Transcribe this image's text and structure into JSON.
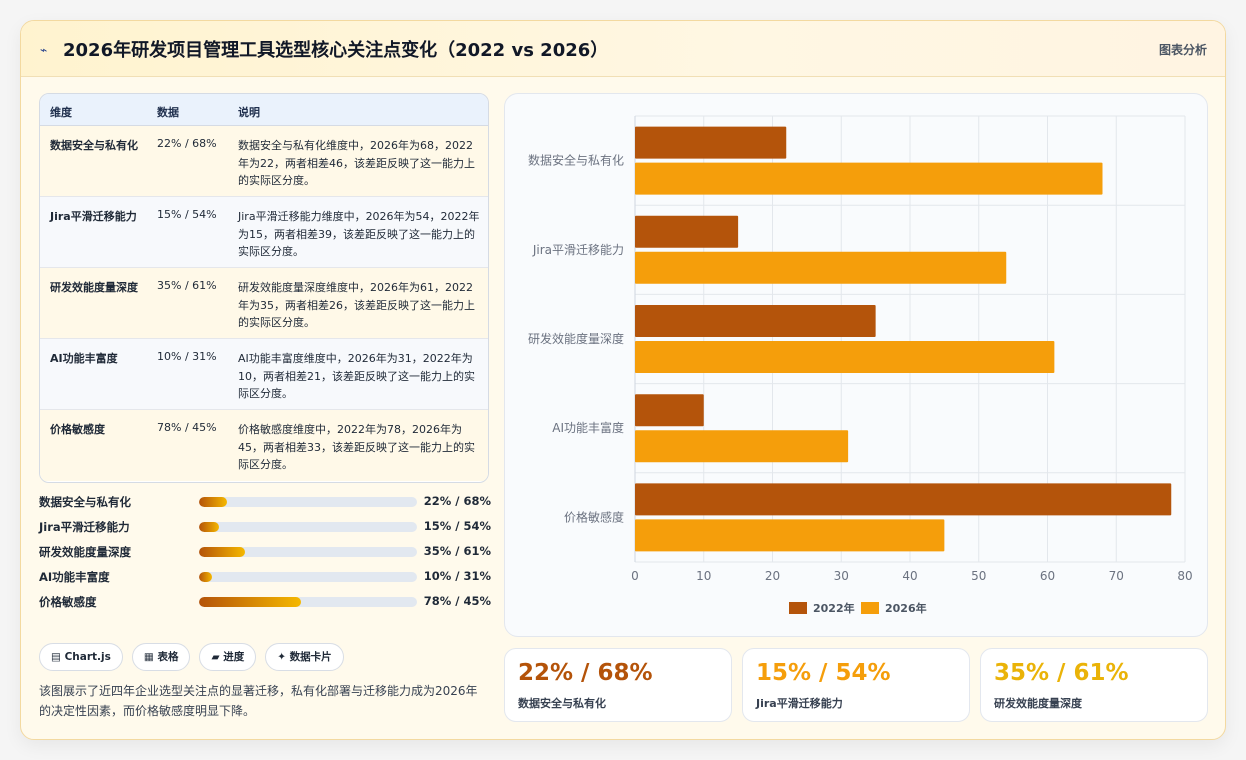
{
  "header": {
    "icon": "chart-line-icon",
    "title": "2026年研发项目管理工具选型核心关注点变化（2022 vs 2026）",
    "tag": "图表分析"
  },
  "table": {
    "headers": [
      "维度",
      "数据",
      "说明"
    ],
    "rows": [
      {
        "dim": "数据安全与私有化",
        "data": "22% / 68%",
        "desc": "数据安全与私有化维度中，2026年为68，2022年为22，两者相差46，该差距反映了这一能力上的实际区分度。"
      },
      {
        "dim": "Jira平滑迁移能力",
        "data": "15% / 54%",
        "desc": "Jira平滑迁移能力维度中，2026年为54，2022年为15，两者相差39，该差距反映了这一能力上的实际区分度。"
      },
      {
        "dim": "研发效能度量深度",
        "data": "35% / 61%",
        "desc": "研发效能度量深度维度中，2026年为61，2022年为35，两者相差26，该差距反映了这一能力上的实际区分度。"
      },
      {
        "dim": "AI功能丰富度",
        "data": "10% / 31%",
        "desc": "AI功能丰富度维度中，2026年为31，2022年为10，两者相差21，该差距反映了这一能力上的实际区分度。"
      },
      {
        "dim": "价格敏感度",
        "data": "78% / 45%",
        "desc": "价格敏感度维度中，2022年为78，2026年为45，两者相差33，该差距反映了这一能力上的实际区分度。"
      }
    ]
  },
  "progress": [
    {
      "label": "数据安全与私有化",
      "value": "22% / 68%",
      "fill": 0.13
    },
    {
      "label": "Jira平滑迁移能力",
      "value": "15% / 54%",
      "fill": 0.09
    },
    {
      "label": "研发效能度量深度",
      "value": "35% / 61%",
      "fill": 0.21
    },
    {
      "label": "AI功能丰富度",
      "value": "10% / 31%",
      "fill": 0.06
    },
    {
      "label": "价格敏感度",
      "value": "78% / 45%",
      "fill": 0.47
    }
  ],
  "chips": [
    {
      "icon": "chart-icon",
      "label": "▤ Chart.js"
    },
    {
      "icon": "table-icon",
      "label": "▦ 表格"
    },
    {
      "icon": "progress-icon",
      "label": "▰ 进度"
    },
    {
      "icon": "sparkle-icon",
      "label": "✦ 数据卡片"
    }
  ],
  "description": "该图展示了近四年企业选型关注点的显著迁移，私有化部署与迁移能力成为2026年的决定性因素，而价格敏感度明显下降。",
  "stats": [
    {
      "value": "22% / 68%",
      "label": "数据安全与私有化",
      "color": "#b45309"
    },
    {
      "value": "15% / 54%",
      "label": "Jira平滑迁移能力",
      "color": "#f59e0b"
    },
    {
      "value": "35% / 61%",
      "label": "研发效能度量深度",
      "color": "#eab308"
    }
  ],
  "chart_data": {
    "type": "bar",
    "orientation": "horizontal",
    "categories": [
      "数据安全与私有化",
      "Jira平滑迁移能力",
      "研发效能度量深度",
      "AI功能丰富度",
      "价格敏感度"
    ],
    "series": [
      {
        "name": "2022年",
        "values": [
          22,
          15,
          35,
          10,
          78
        ],
        "color": "#b4540b"
      },
      {
        "name": "2026年",
        "values": [
          68,
          54,
          61,
          31,
          45
        ],
        "color": "#f59e0b"
      }
    ],
    "xlim": [
      0,
      80
    ],
    "xticks": [
      0,
      10,
      20,
      30,
      40,
      50,
      60,
      70,
      80
    ],
    "grid": true,
    "legend": "bottom"
  }
}
